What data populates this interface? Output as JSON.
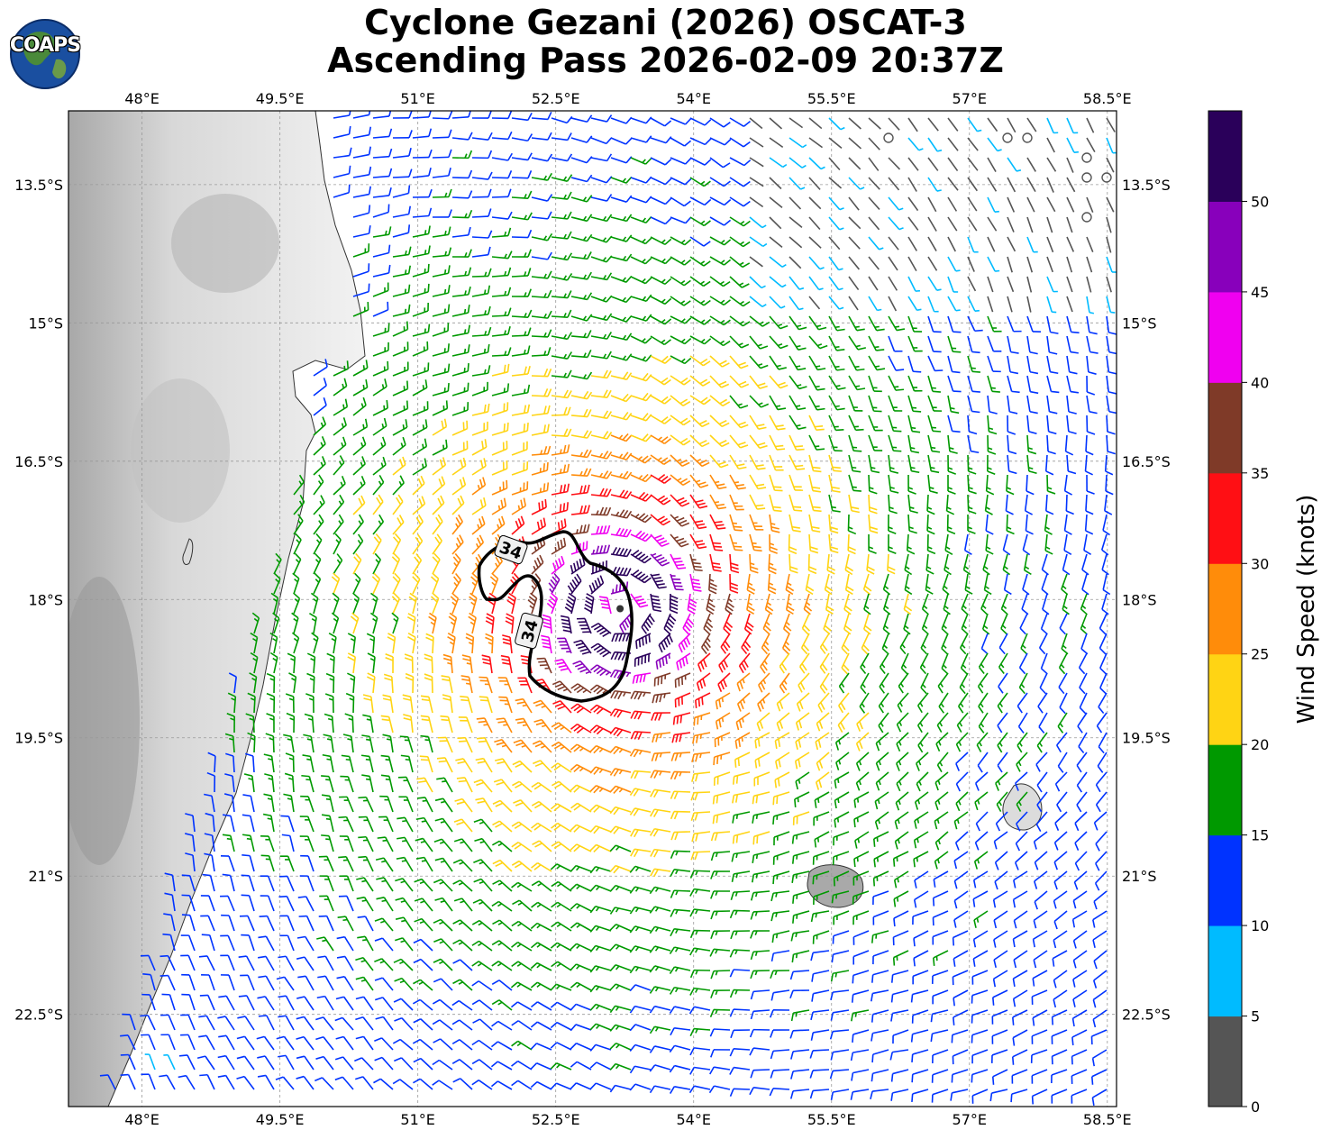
{
  "title_line1": "Cyclone Gezani (2026) OSCAT-3",
  "title_line2": "Ascending Pass 2026-02-09 20:37Z",
  "logo_text": "COAPS",
  "lon_ticks": [
    "48°E",
    "49.5°E",
    "51°E",
    "52.5°E",
    "54°E",
    "55.5°E",
    "57°E",
    "58.5°E"
  ],
  "lat_ticks": [
    "13.5°S",
    "15°S",
    "16.5°S",
    "18°S",
    "19.5°S",
    "21°S",
    "22.5°S"
  ],
  "contour_label": "34",
  "colorbar": {
    "label": "Wind Speed (knots)",
    "ticks": [
      "0",
      "5",
      "10",
      "15",
      "20",
      "25",
      "30",
      "35",
      "40",
      "45",
      "50"
    ],
    "colors": [
      "#555555",
      "#00bbff",
      "#0033ff",
      "#009900",
      "#ffd414",
      "#ff8c0a",
      "#ff0f14",
      "#7f3a28",
      "#f000f0",
      "#8800bb",
      "#2a005a"
    ]
  },
  "chart_data": {
    "type": "wind-barb-map",
    "lon_range": [
      47.2,
      58.6
    ],
    "lat_range": [
      -12.7,
      -23.5
    ],
    "center": {
      "lon": 53.2,
      "lat": -18.1
    },
    "max_wind_kt": 50,
    "speed_bins_kt": [
      0,
      5,
      10,
      15,
      20,
      25,
      30,
      35,
      40,
      45,
      50,
      55
    ]
  }
}
